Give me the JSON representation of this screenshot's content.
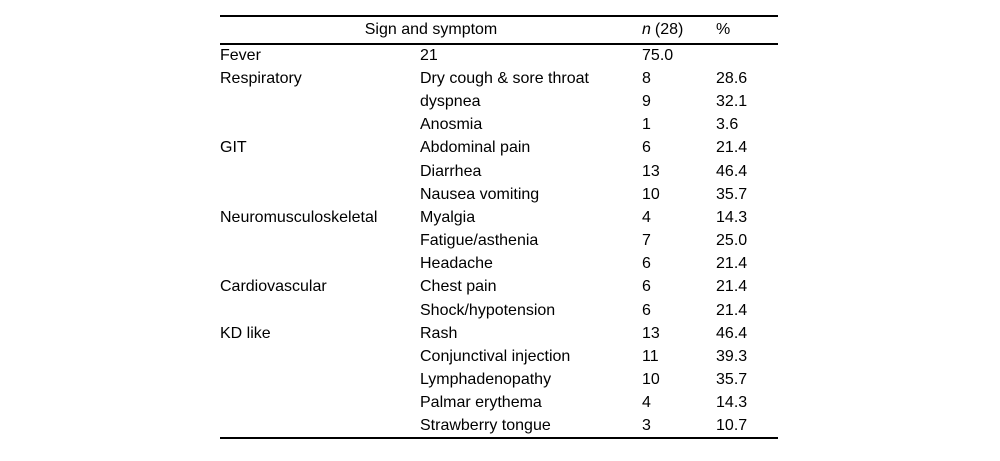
{
  "table": {
    "header": {
      "sign_and_symptom": "Sign and symptom",
      "n_label": "n",
      "n_count": "(28)",
      "percent_label": "%"
    },
    "rows": [
      {
        "category": "Fever",
        "symptom": "21",
        "n": "75.0",
        "pct": ""
      },
      {
        "category": "Respiratory",
        "symptom": "Dry cough & sore throat",
        "n": "8",
        "pct": "28.6"
      },
      {
        "category": "",
        "symptom": "dyspnea",
        "n": "9",
        "pct": "32.1"
      },
      {
        "category": "",
        "symptom": "Anosmia",
        "n": "1",
        "pct": "3.6"
      },
      {
        "category": "GIT",
        "symptom": "Abdominal pain",
        "n": "6",
        "pct": "21.4"
      },
      {
        "category": "",
        "symptom": "Diarrhea",
        "n": "13",
        "pct": "46.4"
      },
      {
        "category": "",
        "symptom": "Nausea vomiting",
        "n": "10",
        "pct": "35.7"
      },
      {
        "category": "Neuromusculoskeletal",
        "symptom": "Myalgia",
        "n": "4",
        "pct": "14.3"
      },
      {
        "category": "",
        "symptom": "Fatigue/asthenia",
        "n": "7",
        "pct": "25.0"
      },
      {
        "category": "",
        "symptom": "Headache",
        "n": "6",
        "pct": "21.4"
      },
      {
        "category": "Cardiovascular",
        "symptom": "Chest pain",
        "n": "6",
        "pct": "21.4"
      },
      {
        "category": "",
        "symptom": "Shock/hypotension",
        "n": "6",
        "pct": "21.4"
      },
      {
        "category": "KD like",
        "symptom": "Rash",
        "n": "13",
        "pct": "46.4"
      },
      {
        "category": "",
        "symptom": "Conjunctival injection",
        "n": "11",
        "pct": "39.3"
      },
      {
        "category": "",
        "symptom": "Lymphadenopathy",
        "n": "10",
        "pct": "35.7"
      },
      {
        "category": "",
        "symptom": "Palmar erythema",
        "n": "4",
        "pct": "14.3"
      },
      {
        "category": "",
        "symptom": "Strawberry tongue",
        "n": "3",
        "pct": "10.7"
      }
    ]
  }
}
